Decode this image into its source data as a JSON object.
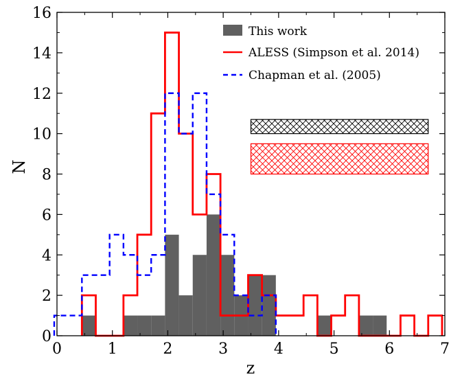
{
  "chart_data": {
    "type": "bar",
    "xlabel": "z",
    "ylabel": "N",
    "xlim": [
      0,
      7
    ],
    "ylim": [
      0,
      16
    ],
    "xticks": [
      0,
      1,
      2,
      3,
      4,
      5,
      6,
      7
    ],
    "yticks": [
      0,
      2,
      4,
      6,
      8,
      10,
      12,
      14,
      16
    ],
    "legend_position": "top-right",
    "grid": false,
    "bin_width": 0.25,
    "series": [
      {
        "name": "This work",
        "style": "filled",
        "color": "#606060",
        "bin_start": 0.45,
        "values": [
          1,
          0,
          0,
          1,
          1,
          1,
          5,
          2,
          4,
          6,
          4,
          2,
          3,
          3,
          0,
          0,
          0,
          1,
          0,
          0,
          1,
          1
        ]
      },
      {
        "name": "ALESS (Simpson et al. 2014)",
        "style": "step-solid",
        "color": "#ff0000",
        "bin_start": 0.45,
        "values": [
          2,
          0,
          0,
          2,
          5,
          11,
          15,
          10,
          6,
          8,
          1,
          1,
          3,
          2,
          1,
          1,
          2,
          0,
          1,
          2,
          0,
          0,
          0,
          1,
          0,
          1
        ]
      },
      {
        "name": "Chapman et al. (2005)",
        "style": "step-dashed",
        "color": "#0000ff",
        "bin_start": -0.05,
        "values": [
          1,
          1,
          3,
          3,
          5,
          4,
          3,
          4,
          12,
          10,
          12,
          7,
          5,
          2,
          1,
          2
        ]
      }
    ],
    "range_boxes": [
      {
        "x": [
          3.5,
          6.7
        ],
        "y": [
          10,
          10.7
        ],
        "color": "#000000"
      },
      {
        "x": [
          3.5,
          6.7
        ],
        "y": [
          8,
          9.5
        ],
        "color": "#ff0000"
      }
    ]
  }
}
